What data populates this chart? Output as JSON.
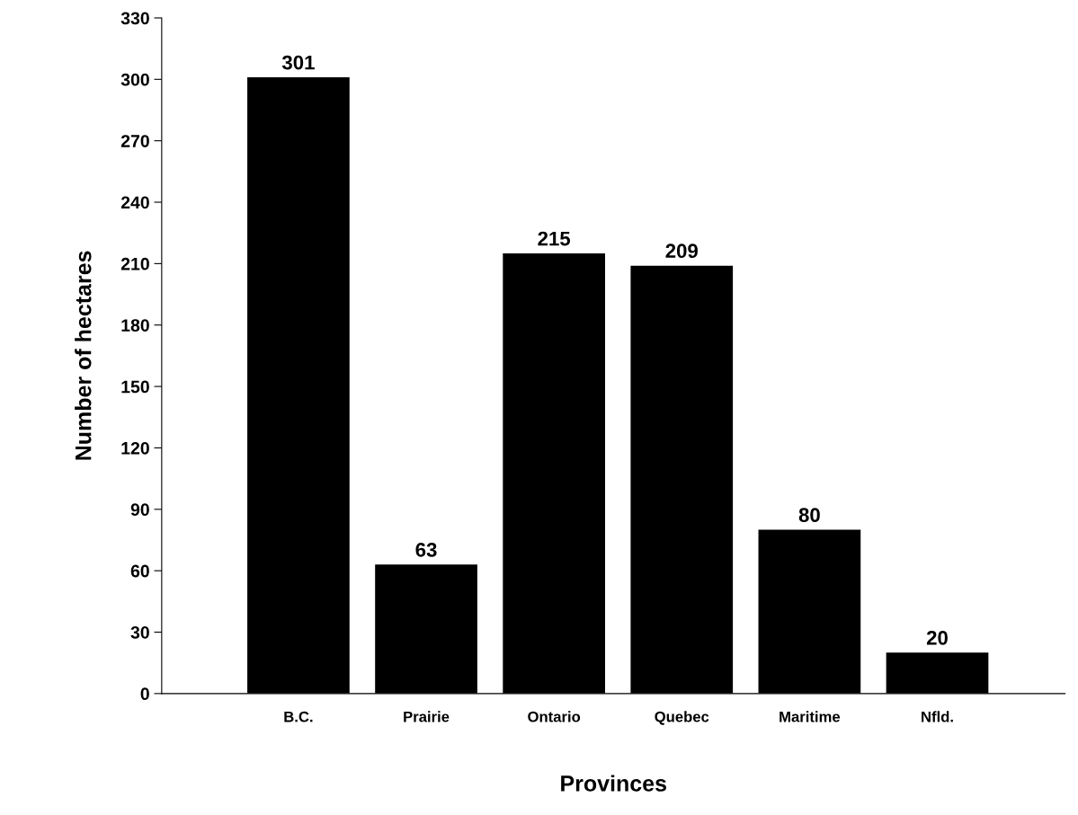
{
  "chart_data": {
    "type": "bar",
    "xlabel": "Provinces",
    "ylabel": "Number of hectares",
    "categories": [
      "B.C.",
      "Prairie",
      "Ontario",
      "Quebec",
      "Maritime",
      "Nfld."
    ],
    "values": [
      301,
      63,
      215,
      209,
      80,
      20
    ],
    "color": "#000000",
    "ylim": [
      0,
      330
    ],
    "yticks": [
      0,
      30,
      60,
      90,
      120,
      150,
      180,
      210,
      240,
      270,
      300,
      330
    ],
    "data_labels": true,
    "grid": false,
    "legend": false
  }
}
